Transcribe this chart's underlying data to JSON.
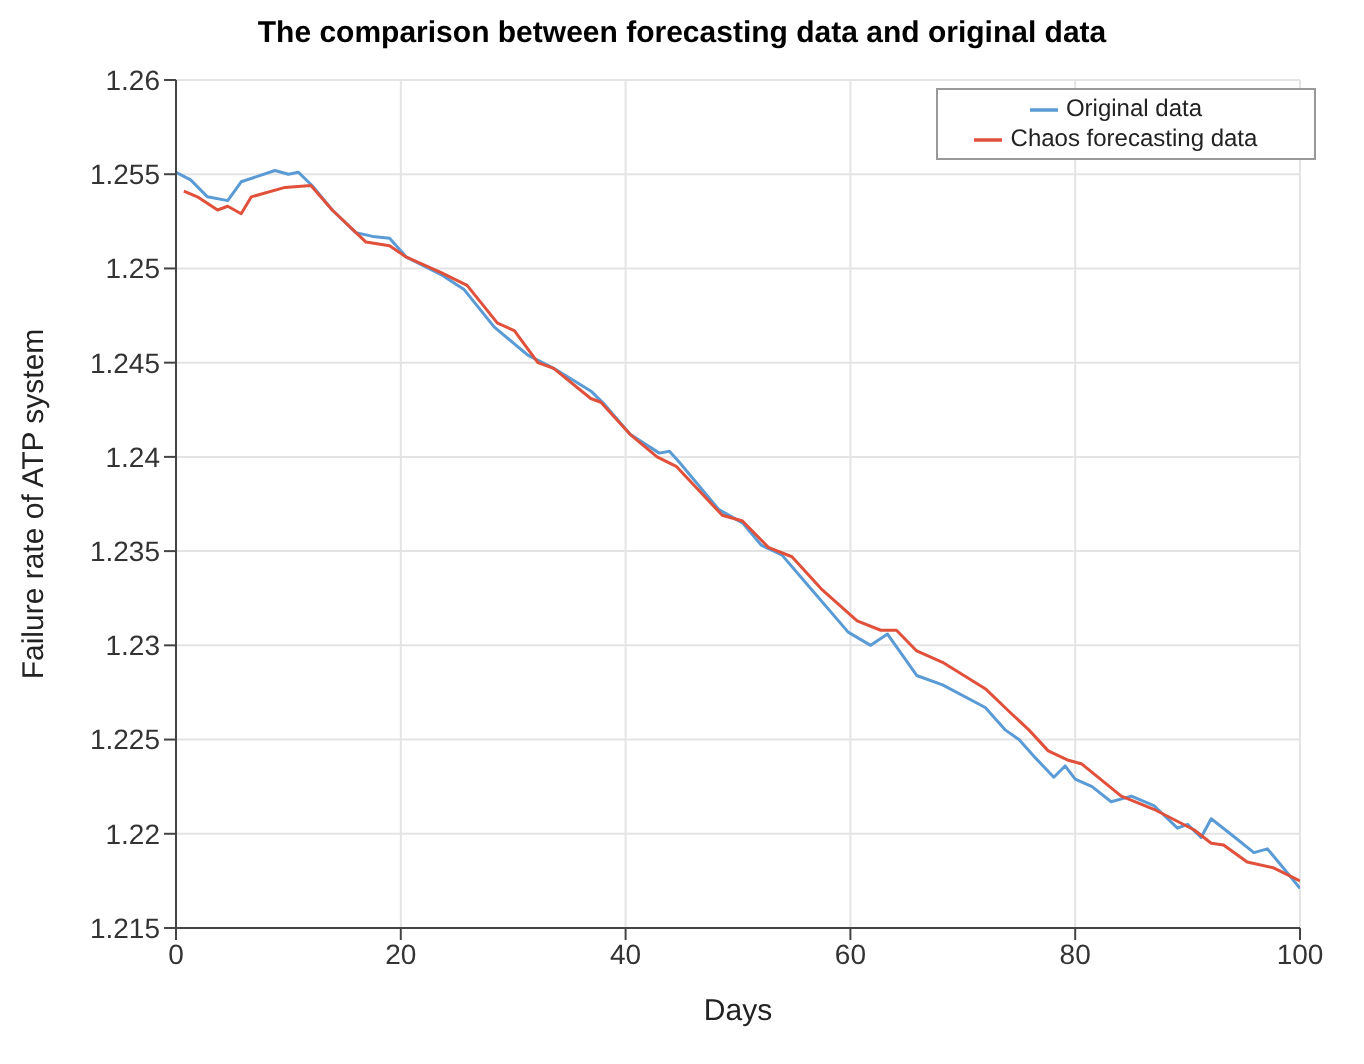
{
  "chart_data": {
    "type": "line",
    "title": "The comparison between forecasting data and original data",
    "xlabel": "Days",
    "ylabel": "Failure rate of ATP system",
    "xlim": [
      0,
      100
    ],
    "xticks": [
      0,
      20,
      40,
      60,
      80,
      100
    ],
    "ylim": [
      1.215,
      1.26
    ],
    "yticks": [
      1.215,
      1.22,
      1.225,
      1.23,
      1.235,
      1.24,
      1.245,
      1.25,
      1.255,
      1.26
    ],
    "grid": true,
    "legend": "top right",
    "marker": "none",
    "line_style": "solid",
    "series": [
      {
        "name": "Original data",
        "color": "#5a9bd5",
        "x": [
          0,
          1.3,
          2.8,
          4.6,
          5.8,
          8.8,
          10,
          10.9,
          12.1,
          13.9,
          16,
          17.5,
          19,
          20.5,
          23.5,
          25.6,
          28.3,
          31.3,
          33.6,
          36.9,
          38.1,
          40.4,
          43,
          43.9,
          44.8,
          48.3,
          50.4,
          52.1,
          53.9,
          56.2,
          59.8,
          61.8,
          63.3,
          65.9,
          68.2,
          72,
          73.8,
          75,
          76.5,
          78.1,
          79.1,
          80,
          81.5,
          83.2,
          85,
          87,
          89.1,
          90,
          91.2,
          92.1,
          93.8,
          95.9,
          97.1,
          98.5,
          100
        ],
        "values": [
          1.2551,
          1.2547,
          1.2538,
          1.2536,
          1.2546,
          1.2552,
          1.255,
          1.2551,
          1.2544,
          1.2531,
          1.2519,
          1.2517,
          1.2516,
          1.2506,
          1.2497,
          1.2489,
          1.2469,
          1.2454,
          1.2447,
          1.2435,
          1.2428,
          1.2412,
          1.2402,
          1.2403,
          1.2397,
          1.2372,
          1.2365,
          1.2353,
          1.2348,
          1.2332,
          1.2307,
          1.23,
          1.2306,
          1.2284,
          1.2279,
          1.2267,
          1.2255,
          1.225,
          1.224,
          1.223,
          1.2236,
          1.2229,
          1.2225,
          1.2217,
          1.222,
          1.2215,
          1.2203,
          1.2205,
          1.2198,
          1.2208,
          1.22,
          1.219,
          1.2192,
          1.2182,
          1.2171
        ]
      },
      {
        "name": "Chaos forecasting data",
        "color": "#e0503a",
        "x": [
          0.7,
          1.9,
          3.7,
          4.6,
          5.8,
          6.7,
          9.7,
          12,
          13.9,
          16.9,
          19,
          20.5,
          23.5,
          25.9,
          28.6,
          30.1,
          32.2,
          33.6,
          36.9,
          37.8,
          40.4,
          42.8,
          44.5,
          48.6,
          50.4,
          52.7,
          54.8,
          57.4,
          60.6,
          62.7,
          64.1,
          65.9,
          68.2,
          72,
          74.1,
          75.9,
          77.6,
          79.4,
          80.6,
          84.1,
          87,
          90.6,
          92.1,
          93.2,
          95.3,
          97.6,
          100
        ],
        "values": [
          1.2541,
          1.2538,
          1.2531,
          1.2533,
          1.2529,
          1.2538,
          1.2543,
          1.2544,
          1.2531,
          1.2514,
          1.2512,
          1.2506,
          1.2498,
          1.2491,
          1.2471,
          1.2467,
          1.245,
          1.2447,
          1.2431,
          1.2429,
          1.2412,
          1.24,
          1.2395,
          1.2369,
          1.2366,
          1.2352,
          1.2347,
          1.233,
          1.2313,
          1.2308,
          1.2308,
          1.2297,
          1.2291,
          1.2277,
          1.2265,
          1.2255,
          1.2244,
          1.2239,
          1.2237,
          1.222,
          1.2213,
          1.2202,
          1.2195,
          1.2194,
          1.2185,
          1.2182,
          1.2175
        ]
      }
    ]
  }
}
